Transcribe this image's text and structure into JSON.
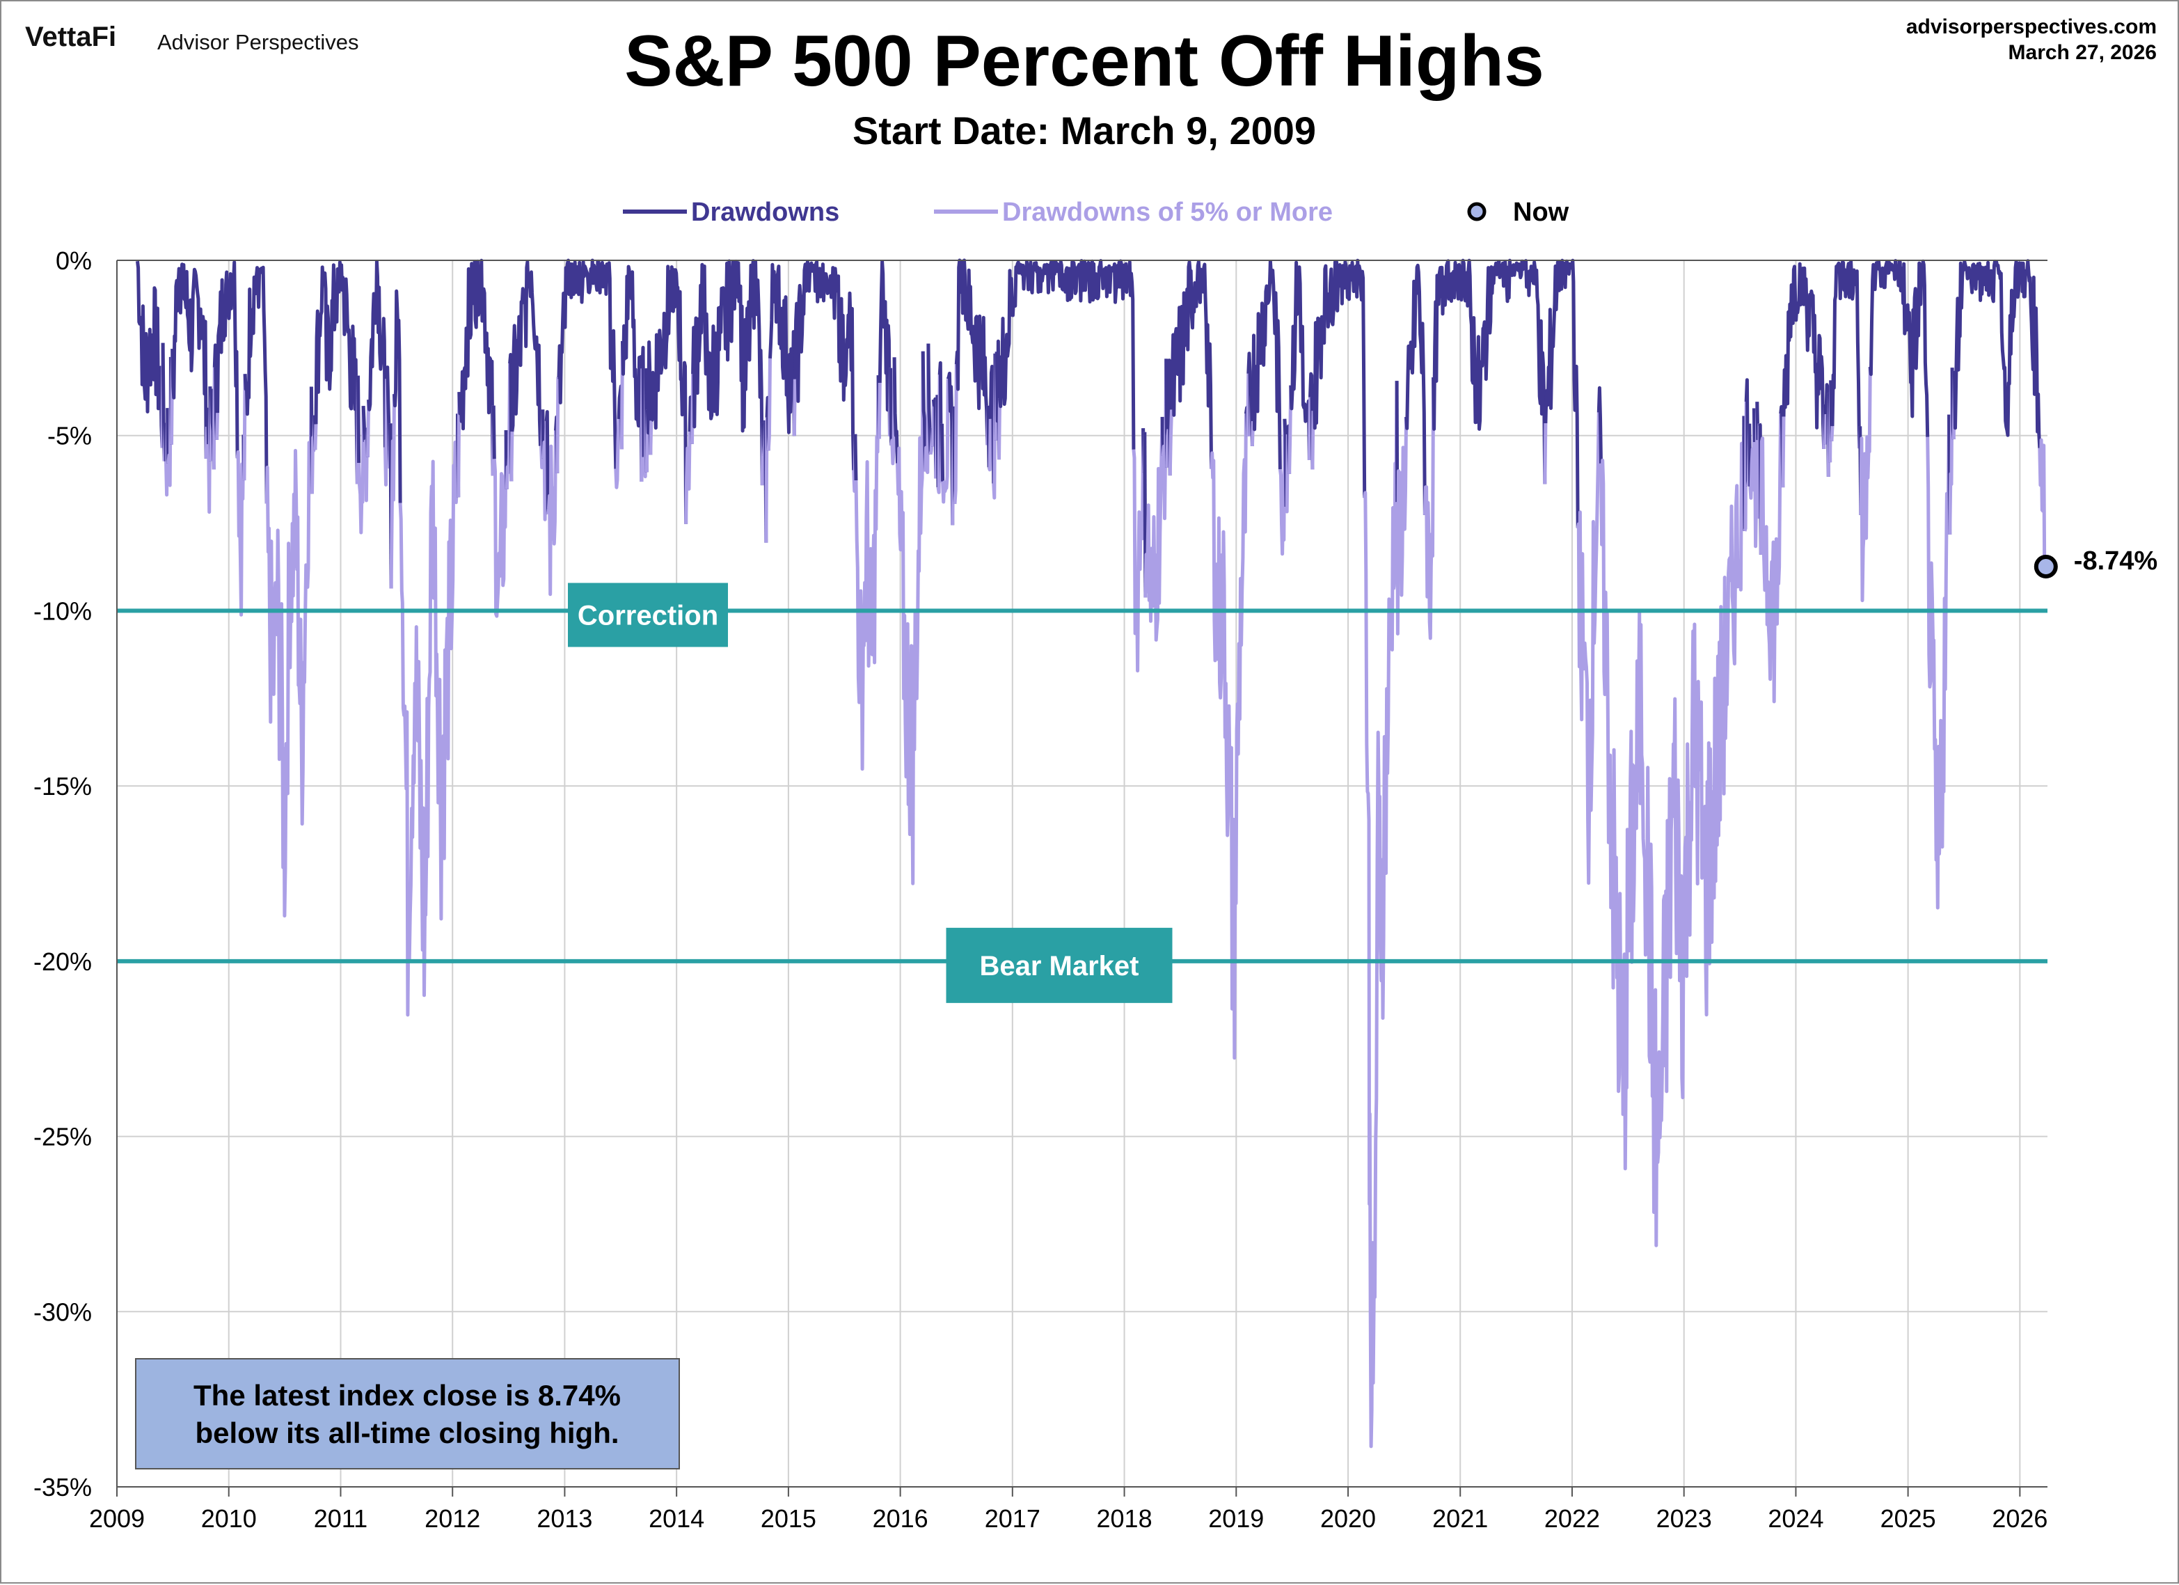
{
  "header": {
    "brand": "VettaFi",
    "brand_sub": "Advisor Perspectives",
    "website": "advisorperspectives.com",
    "date": "March 27, 2026"
  },
  "chart_data": {
    "type": "line",
    "title": "S&P 500 Percent Off Highs",
    "subtitle": "Start Date: March 9, 2009",
    "xlabel": "",
    "ylabel": "",
    "x_ticks": [
      "2009",
      "2010",
      "2011",
      "2012",
      "2013",
      "2014",
      "2015",
      "2016",
      "2017",
      "2018",
      "2019",
      "2020",
      "2021",
      "2022",
      "2023",
      "2024",
      "2025",
      "2026"
    ],
    "y_ticks": [
      "0%",
      "-5%",
      "-10%",
      "-15%",
      "-20%",
      "-25%",
      "-30%",
      "-35%"
    ],
    "xlim": [
      "2009-01-01",
      "2026-04-01"
    ],
    "ylim": [
      -35,
      0
    ],
    "grid": true,
    "legend_position": "top",
    "legend": [
      {
        "label": "Drawdowns",
        "color": "#3f3791",
        "kind": "line"
      },
      {
        "label": "Drawdowns of 5% or More",
        "color": "#ab9fe6",
        "kind": "line"
      },
      {
        "label": "Now",
        "color": "#a8b6e8",
        "kind": "marker"
      }
    ],
    "threshold_note": "Values at or below -5% are drawn in the lighter color",
    "series": [
      {
        "name": "Drawdowns",
        "points": [
          [
            "2009-03-09",
            0
          ],
          [
            "2009-04-01",
            -3.3
          ],
          [
            "2009-05-01",
            -2
          ],
          [
            "2009-06-15",
            -5.4
          ],
          [
            "2009-07-01",
            -4
          ],
          [
            "2009-07-20",
            0
          ],
          [
            "2009-09-01",
            -2
          ],
          [
            "2009-10-01",
            -1
          ],
          [
            "2009-11-01",
            -5.8
          ],
          [
            "2009-12-15",
            -1
          ],
          [
            "2010-01-19",
            0
          ],
          [
            "2010-02-08",
            -8.1
          ],
          [
            "2010-03-15",
            -1
          ],
          [
            "2010-04-23",
            0
          ],
          [
            "2010-05-07",
            -8.6
          ],
          [
            "2010-05-25",
            -12
          ],
          [
            "2010-06-10",
            -10
          ],
          [
            "2010-07-02",
            -16
          ],
          [
            "2010-07-20",
            -9
          ],
          [
            "2010-08-09",
            -7.3
          ],
          [
            "2010-08-26",
            -14
          ],
          [
            "2010-09-15",
            -7
          ],
          [
            "2010-10-15",
            -3
          ],
          [
            "2010-11-05",
            0
          ],
          [
            "2010-11-16",
            -3
          ],
          [
            "2011-01-01",
            0
          ],
          [
            "2011-03-16",
            -6.4
          ],
          [
            "2011-04-29",
            0
          ],
          [
            "2011-06-15",
            -7
          ],
          [
            "2011-07-07",
            -1
          ],
          [
            "2011-08-08",
            -17.9
          ],
          [
            "2011-08-31",
            -11.5
          ],
          [
            "2011-09-15",
            -15
          ],
          [
            "2011-10-03",
            -19.4
          ],
          [
            "2011-10-27",
            -6.1
          ],
          [
            "2011-11-25",
            -15.1
          ],
          [
            "2011-12-15",
            -12
          ],
          [
            "2012-01-15",
            -6
          ],
          [
            "2012-02-15",
            -2
          ],
          [
            "2012-04-02",
            0
          ],
          [
            "2012-05-01",
            -3
          ],
          [
            "2012-06-01",
            -9.9
          ],
          [
            "2012-07-01",
            -5
          ],
          [
            "2012-08-15",
            -2
          ],
          [
            "2012-09-14",
            0
          ],
          [
            "2012-11-15",
            -7.7
          ],
          [
            "2013-01-15",
            0
          ],
          [
            "2013-03-15",
            0
          ],
          [
            "2013-05-21",
            0
          ],
          [
            "2013-06-24",
            -5.8
          ],
          [
            "2013-08-02",
            0
          ],
          [
            "2013-08-30",
            -4.6
          ],
          [
            "2013-10-08",
            -4
          ],
          [
            "2013-12-31",
            0
          ],
          [
            "2014-02-03",
            -5.8
          ],
          [
            "2014-04-02",
            0
          ],
          [
            "2014-04-11",
            -4
          ],
          [
            "2014-07-24",
            0
          ],
          [
            "2014-08-07",
            -3.9
          ],
          [
            "2014-09-18",
            0
          ],
          [
            "2014-10-15",
            -7.4
          ],
          [
            "2014-11-15",
            0
          ],
          [
            "2015-01-15",
            -4
          ],
          [
            "2015-03-02",
            0
          ],
          [
            "2015-05-21",
            0
          ],
          [
            "2015-07-08",
            -4
          ],
          [
            "2015-07-20",
            0
          ],
          [
            "2015-08-25",
            -12.4
          ],
          [
            "2015-09-15",
            -8
          ],
          [
            "2015-09-29",
            -11.9
          ],
          [
            "2015-11-03",
            -1
          ],
          [
            "2015-12-15",
            -5
          ],
          [
            "2016-01-20",
            -12.1
          ],
          [
            "2016-02-11",
            -14.2
          ],
          [
            "2016-03-15",
            -4
          ],
          [
            "2016-06-27",
            -5.6
          ],
          [
            "2016-07-15",
            0
          ],
          [
            "2016-11-03",
            -4.8
          ],
          [
            "2017-01-15",
            0
          ],
          [
            "2017-06-15",
            0
          ],
          [
            "2017-12-15",
            0
          ],
          [
            "2018-01-26",
            0
          ],
          [
            "2018-02-08",
            -10.2
          ],
          [
            "2018-03-01",
            -6
          ],
          [
            "2018-04-02",
            -10.1
          ],
          [
            "2018-05-15",
            -5
          ],
          [
            "2018-08-29",
            0
          ],
          [
            "2018-09-20",
            0
          ],
          [
            "2018-10-29",
            -9.9
          ],
          [
            "2018-11-23",
            -10.2
          ],
          [
            "2018-12-24",
            -19.8
          ],
          [
            "2019-01-15",
            -10
          ],
          [
            "2019-02-15",
            -4
          ],
          [
            "2019-04-30",
            0
          ],
          [
            "2019-06-03",
            -6.8
          ],
          [
            "2019-07-26",
            0
          ],
          [
            "2019-08-15",
            -6
          ],
          [
            "2019-10-15",
            -1
          ],
          [
            "2019-12-15",
            0
          ],
          [
            "2020-02-19",
            0
          ],
          [
            "2020-03-09",
            -19
          ],
          [
            "2020-03-12",
            -26.7
          ],
          [
            "2020-03-16",
            -29.5
          ],
          [
            "2020-03-23",
            -33.9
          ],
          [
            "2020-04-08",
            -17
          ],
          [
            "2020-04-21",
            -18
          ],
          [
            "2020-06-08",
            -5
          ],
          [
            "2020-06-11",
            -9
          ],
          [
            "2020-08-18",
            0
          ],
          [
            "2020-09-23",
            -9.6
          ],
          [
            "2020-10-15",
            -2
          ],
          [
            "2020-11-15",
            0
          ],
          [
            "2021-01-15",
            0
          ],
          [
            "2021-03-04",
            -4.2
          ],
          [
            "2021-04-15",
            0
          ],
          [
            "2021-09-02",
            0
          ],
          [
            "2021-10-04",
            -5.2
          ],
          [
            "2021-11-15",
            0
          ],
          [
            "2022-01-03",
            0
          ],
          [
            "2022-01-27",
            -9.8
          ],
          [
            "2022-02-24",
            -14.6
          ],
          [
            "2022-03-29",
            -5
          ],
          [
            "2022-05-20",
            -18.7
          ],
          [
            "2022-06-16",
            -23.5
          ],
          [
            "2022-07-15",
            -17
          ],
          [
            "2022-08-16",
            -12.5
          ],
          [
            "2022-09-30",
            -24.8
          ],
          [
            "2022-10-12",
            -25.4
          ],
          [
            "2022-11-30",
            -15
          ],
          [
            "2022-12-28",
            -19.8
          ],
          [
            "2023-02-02",
            -13
          ],
          [
            "2023-03-13",
            -18
          ],
          [
            "2023-06-15",
            -9
          ],
          [
            "2023-07-31",
            -4.5
          ],
          [
            "2023-10-27",
            -10.3
          ],
          [
            "2023-11-15",
            -6
          ],
          [
            "2023-12-15",
            -1
          ],
          [
            "2024-01-19",
            0
          ],
          [
            "2024-04-19",
            -5.5
          ],
          [
            "2024-05-15",
            0
          ],
          [
            "2024-07-16",
            0
          ],
          [
            "2024-08-05",
            -8.5
          ],
          [
            "2024-09-15",
            0
          ],
          [
            "2024-12-06",
            0
          ],
          [
            "2025-01-15",
            -3
          ],
          [
            "2025-02-19",
            0
          ],
          [
            "2025-03-13",
            -10.1
          ],
          [
            "2025-04-08",
            -18.9
          ],
          [
            "2025-05-15",
            -6
          ],
          [
            "2025-06-27",
            0
          ],
          [
            "2025-08-15",
            0
          ],
          [
            "2025-10-29",
            0
          ],
          [
            "2025-11-20",
            -5
          ],
          [
            "2025-12-15",
            0
          ],
          [
            "2026-01-27",
            0
          ],
          [
            "2026-02-25",
            -3
          ],
          [
            "2026-03-09",
            -5
          ],
          [
            "2026-03-20",
            -6.8
          ],
          [
            "2026-03-27",
            -8.74
          ]
        ]
      }
    ],
    "reference_lines": [
      {
        "label": "Correction",
        "value": -10,
        "color": "#2aa0a4"
      },
      {
        "label": "Bear Market",
        "value": -20,
        "color": "#2aa0a4"
      }
    ],
    "annotations": [
      {
        "text": "-8.74%",
        "x": "2026-03-27",
        "y": -8.74
      }
    ],
    "note_box": {
      "line1": "The latest index close is 8.74%",
      "line2": "below its all-time closing high."
    }
  },
  "colors": {
    "dark_series": "#3f3791",
    "light_series": "#ab9fe6",
    "reference": "#2aa0a4",
    "note_box_bg": "#9db4e0",
    "now_marker": "#a8b6e8"
  }
}
